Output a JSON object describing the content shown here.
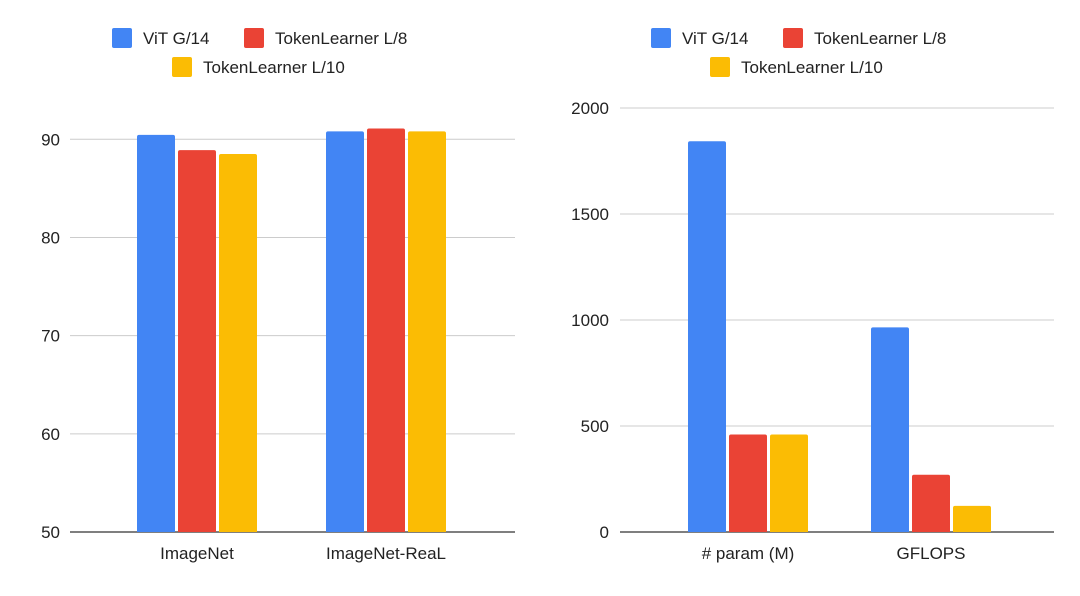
{
  "chart_data": [
    {
      "type": "bar",
      "categories": [
        "ImageNet",
        "ImageNet-ReaL"
      ],
      "series": [
        {
          "name": "ViT G/14",
          "color": "#4285F4",
          "values": [
            90.45,
            90.8
          ]
        },
        {
          "name": "TokenLearner L/8",
          "color": "#EA4335",
          "values": [
            88.9,
            91.1
          ]
        },
        {
          "name": "TokenLearner L/10",
          "color": "#FBBC04",
          "values": [
            88.5,
            90.8
          ]
        }
      ],
      "yticks": [
        50,
        60,
        70,
        80,
        90
      ],
      "ylim": [
        50,
        94
      ],
      "grid": true,
      "legend": "top"
    },
    {
      "type": "bar",
      "categories": [
        "# param (M)",
        "GFLOPS"
      ],
      "series": [
        {
          "name": "ViT G/14",
          "color": "#4285F4",
          "values": [
            1843,
            965
          ]
        },
        {
          "name": "TokenLearner L/8",
          "color": "#EA4335",
          "values": [
            460,
            270
          ]
        },
        {
          "name": "TokenLearner L/10",
          "color": "#FBBC04",
          "values": [
            460,
            123
          ]
        }
      ],
      "yticks": [
        0,
        500,
        1000,
        1500,
        2000
      ],
      "ylim": [
        0,
        2000
      ],
      "grid": true,
      "legend": "top"
    }
  ]
}
